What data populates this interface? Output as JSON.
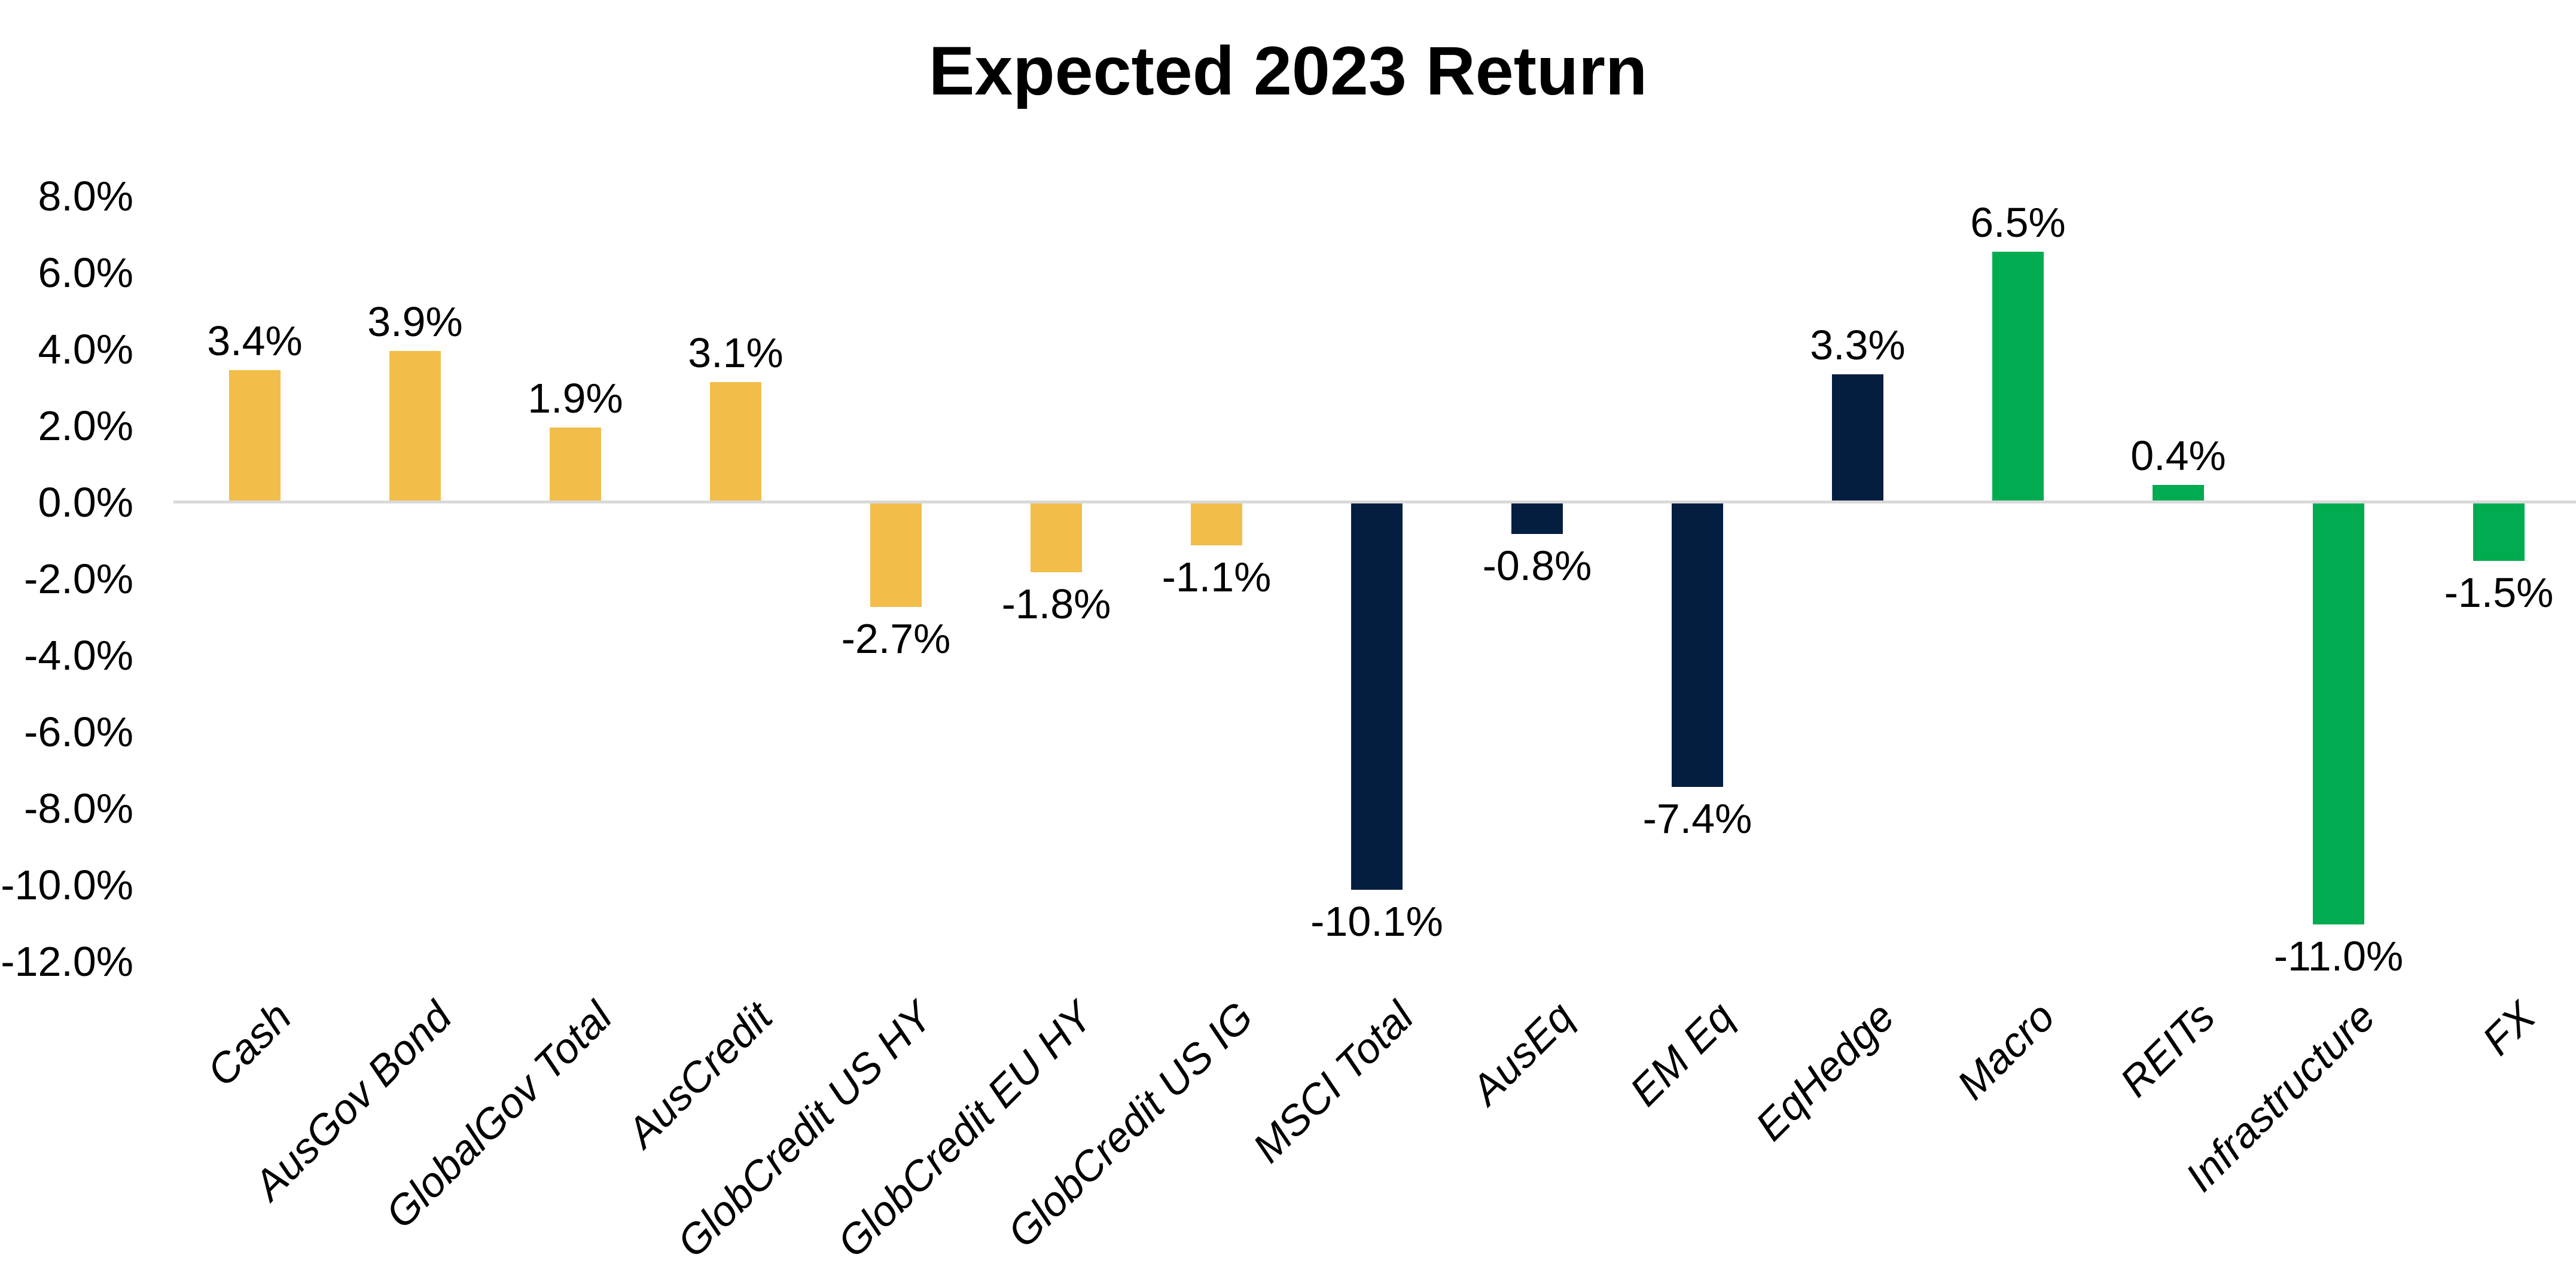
{
  "chart_data": {
    "type": "bar",
    "title": "Expected 2023 Return",
    "xlabel": "",
    "ylabel": "",
    "categories": [
      "Cash",
      "AusGov Bond",
      "GlobalGov Total",
      "AusCredit",
      "GlobCredit US HY",
      "GlobCredit EU HY",
      "GlobCredit US IG",
      "MSCI Total",
      "AusEq",
      "EM Eq",
      "EqHedge",
      "Macro",
      "REITs",
      "Infrastructure",
      "FX"
    ],
    "values": [
      3.4,
      3.9,
      1.9,
      3.1,
      -2.7,
      -1.8,
      -1.1,
      -10.1,
      -0.8,
      -7.4,
      3.3,
      6.5,
      0.4,
      -11.0,
      -1.5
    ],
    "data_labels": [
      "3.4%",
      "3.9%",
      "1.9%",
      "3.1%",
      "-2.7%",
      "-1.8%",
      "-1.1%",
      "-10.1%",
      "-0.8%",
      "-7.4%",
      "3.3%",
      "6.5%",
      "0.4%",
      "-11.0%",
      "-1.5%"
    ],
    "bar_colors": [
      "#F2BD49",
      "#F2BD49",
      "#F2BD49",
      "#F2BD49",
      "#F2BD49",
      "#F2BD49",
      "#F2BD49",
      "#041E40",
      "#041E40",
      "#041E40",
      "#041E40",
      "#00AC4F",
      "#00AC4F",
      "#00AC4F",
      "#00AC4F"
    ],
    "palette": {
      "gold": "#F2BD49",
      "navy": "#041E40",
      "green": "#00AC4F"
    },
    "ylim": [
      -12,
      8
    ],
    "yticks": [
      {
        "value": 8,
        "label": "8.0%"
      },
      {
        "value": 6,
        "label": "6.0%"
      },
      {
        "value": 4,
        "label": "4.0%"
      },
      {
        "value": 2,
        "label": "2.0%"
      },
      {
        "value": 0,
        "label": "0.0%"
      },
      {
        "value": -2,
        "label": "-2.0%"
      },
      {
        "value": -4,
        "label": "-4.0%"
      },
      {
        "value": -6,
        "label": "-6.0%"
      },
      {
        "value": -8,
        "label": "-8.0%"
      },
      {
        "value": -10,
        "label": "-10.0%"
      },
      {
        "value": -12,
        "label": "-12.0%"
      }
    ],
    "grid": false,
    "legend": null,
    "zero_line_color": "#D9D9D9",
    "label_position": "outside-end",
    "category_label_rotation_deg": 45
  }
}
